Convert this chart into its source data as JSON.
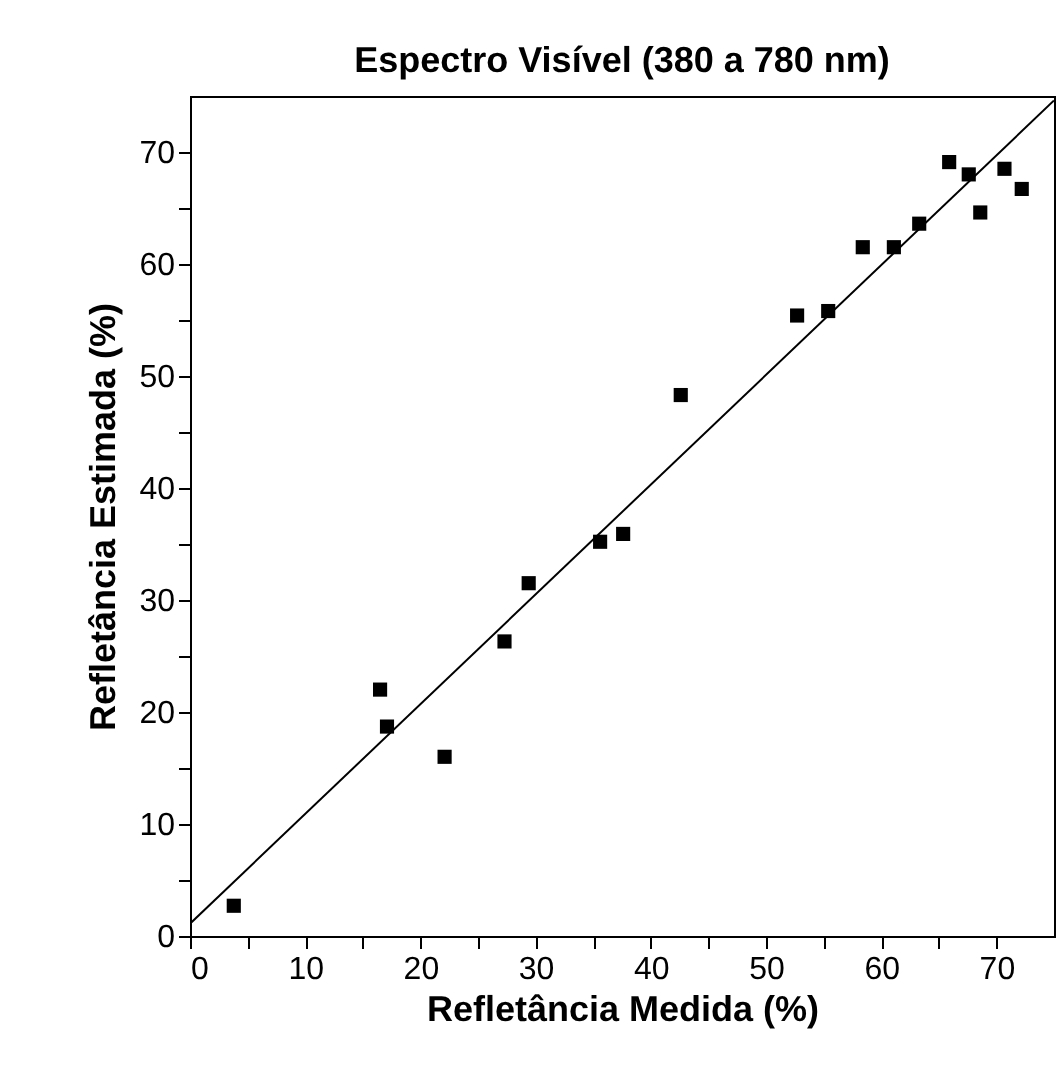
{
  "chart_data": {
    "type": "scatter",
    "title": "Espectro Visível (380 a 780 nm)",
    "xlabel": "Refletância Medida (%)",
    "ylabel": "Refletância Estimada (%)",
    "xlim": [
      0,
      75
    ],
    "ylim": [
      0,
      75
    ],
    "xticks": [
      0,
      {
        "value": 5,
        "label": null
      },
      10,
      {
        "value": 15,
        "label": null
      },
      20,
      {
        "value": 25,
        "label": null
      },
      30,
      {
        "value": 35,
        "label": null
      },
      40,
      {
        "value": 45,
        "label": null
      },
      50,
      {
        "value": 55,
        "label": null
      },
      60,
      {
        "value": 65,
        "label": null
      },
      70
    ],
    "yticks": [
      0,
      {
        "value": 5,
        "label": null
      },
      10,
      {
        "value": 15,
        "label": null
      },
      20,
      {
        "value": 25,
        "label": null
      },
      30,
      {
        "value": 35,
        "label": null
      },
      40,
      {
        "value": 45,
        "label": null
      },
      50,
      {
        "value": 55,
        "label": null
      },
      60,
      {
        "value": 65,
        "label": null
      },
      70
    ],
    "grid": false,
    "marker": "square",
    "series": [
      {
        "type": "scatter",
        "color": "#000000",
        "x": [
          3.8,
          16.5,
          17.1,
          22.1,
          27.3,
          29.4,
          35.6,
          37.6,
          42.6,
          52.7,
          55.4,
          58.4,
          61.1,
          63.3,
          65.9,
          67.6,
          68.6,
          70.7,
          72.2
        ],
        "values": [
          2.7,
          22.0,
          18.7,
          16.0,
          26.3,
          31.5,
          35.2,
          35.9,
          48.3,
          55.4,
          55.8,
          61.5,
          61.5,
          63.6,
          69.1,
          68.0,
          64.6,
          68.5,
          66.7
        ]
      },
      {
        "type": "line",
        "marker": "none",
        "color": "#000000",
        "x": [
          0,
          75
        ],
        "values": [
          1.1,
          74.6
        ]
      }
    ]
  }
}
